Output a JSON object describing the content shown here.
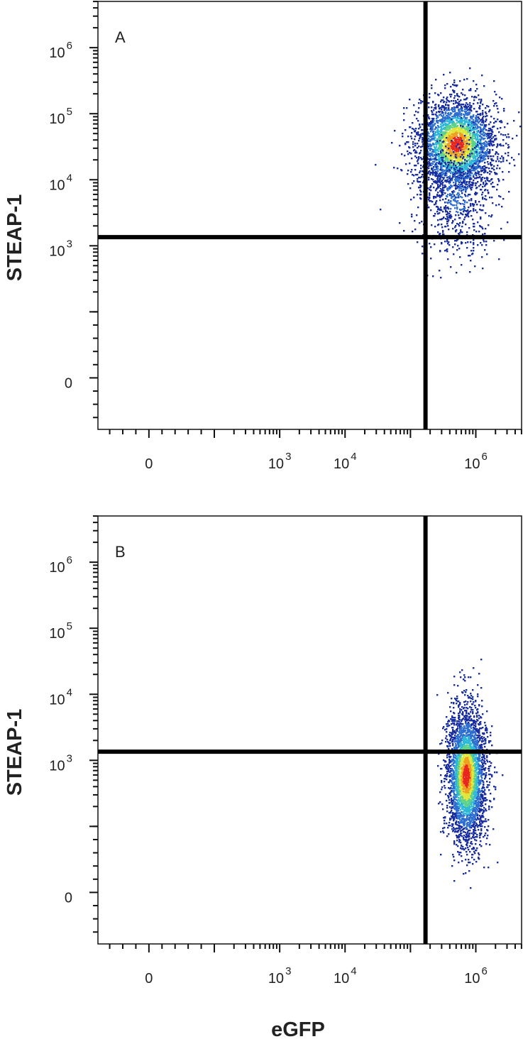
{
  "chart_data": [
    {
      "type": "scatter",
      "style": "flow cytometry density dot plot",
      "panel_label": "A",
      "xlabel": "",
      "ylabel": "STEAP-1",
      "x_scale": "biexponential",
      "y_scale": "biexponential",
      "x_ticks": [
        {
          "value": 0,
          "base": "0",
          "exp": ""
        },
        {
          "value": 1000,
          "base": "10",
          "exp": "3"
        },
        {
          "value": 10000,
          "base": "10",
          "exp": "4"
        },
        {
          "value": 1000000,
          "base": "10",
          "exp": "6"
        }
      ],
      "y_ticks": [
        {
          "value": 0,
          "base": "0",
          "exp": ""
        },
        {
          "value": 1000,
          "base": "10",
          "exp": "3"
        },
        {
          "value": 10000,
          "base": "10",
          "exp": "4"
        },
        {
          "value": 100000,
          "base": "10",
          "exp": "5"
        },
        {
          "value": 1000000,
          "base": "10",
          "exp": "6"
        }
      ],
      "quadrant_gate": {
        "x": 170000,
        "y": 1350
      },
      "populations": [
        {
          "center_x": 500000,
          "center_y": 35000,
          "spread_x_decades": 0.3,
          "spread_y_decades": 0.35,
          "events": 3200
        },
        {
          "center_x": 500000,
          "center_y": 6000,
          "spread_x_decades": 0.3,
          "spread_y_decades": 0.45,
          "events": 700
        }
      ],
      "density_colors": [
        "#1a2fa0",
        "#2f6fd0",
        "#2fb8d8",
        "#5ed28a",
        "#e0e63c",
        "#f0a020",
        "#e8281e"
      ],
      "grid": false,
      "legend": "none"
    },
    {
      "type": "scatter",
      "style": "flow cytometry density dot plot",
      "panel_label": "B",
      "xlabel": "eGFP",
      "ylabel": "STEAP-1",
      "x_scale": "biexponential",
      "y_scale": "biexponential",
      "x_ticks": [
        {
          "value": 0,
          "base": "0",
          "exp": ""
        },
        {
          "value": 1000,
          "base": "10",
          "exp": "3"
        },
        {
          "value": 10000,
          "base": "10",
          "exp": "4"
        },
        {
          "value": 1000000,
          "base": "10",
          "exp": "6"
        }
      ],
      "y_ticks": [
        {
          "value": 0,
          "base": "0",
          "exp": ""
        },
        {
          "value": 1000,
          "base": "10",
          "exp": "3"
        },
        {
          "value": 10000,
          "base": "10",
          "exp": "4"
        },
        {
          "value": 100000,
          "base": "10",
          "exp": "5"
        },
        {
          "value": 1000000,
          "base": "10",
          "exp": "6"
        }
      ],
      "quadrant_gate": {
        "x": 170000,
        "y": 1350
      },
      "populations": [
        {
          "center_x": 700000,
          "center_y": 600,
          "spread_x_decades": 0.15,
          "spread_y_decades": 0.5,
          "events": 3400
        }
      ],
      "density_colors": [
        "#1a2fa0",
        "#2f6fd0",
        "#2fb8d8",
        "#5ed28a",
        "#e0e63c",
        "#f0a020",
        "#e8281e"
      ],
      "grid": false,
      "legend": "none"
    }
  ]
}
